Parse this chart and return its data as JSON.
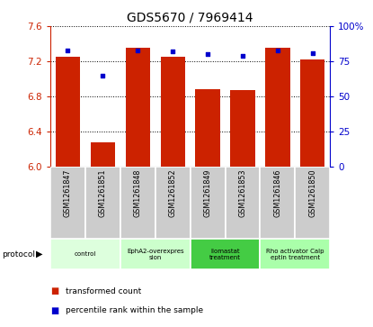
{
  "title": "GDS5670 / 7969414",
  "samples": [
    "GSM1261847",
    "GSM1261851",
    "GSM1261848",
    "GSM1261852",
    "GSM1261849",
    "GSM1261853",
    "GSM1261846",
    "GSM1261850"
  ],
  "transformed_counts": [
    7.25,
    6.28,
    7.35,
    7.25,
    6.88,
    6.87,
    7.35,
    7.22
  ],
  "percentile_ranks": [
    83,
    65,
    83,
    82,
    80,
    79,
    83,
    81
  ],
  "ylim_left": [
    6.0,
    7.6
  ],
  "ylim_right": [
    0,
    100
  ],
  "yticks_left": [
    6.0,
    6.4,
    6.8,
    7.2,
    7.6
  ],
  "yticks_right": [
    0,
    25,
    50,
    75,
    100
  ],
  "ytick_labels_right": [
    "0",
    "25",
    "50",
    "75",
    "100%"
  ],
  "bar_color": "#cc2200",
  "dot_color": "#0000cc",
  "left_axis_color": "#cc2200",
  "right_axis_color": "#0000cc",
  "sample_area_color": "#cccccc",
  "bar_width": 0.7,
  "base_value": 6.0,
  "protocol_configs": [
    [
      0,
      2,
      "control",
      "#ddffdd"
    ],
    [
      2,
      4,
      "EphA2-overexpres\nsion",
      "#ccffcc"
    ],
    [
      4,
      6,
      "Ilomastat\ntreatment",
      "#44cc44"
    ],
    [
      6,
      8,
      "Rho activator Calp\neptin treatment",
      "#aaffaa"
    ]
  ]
}
